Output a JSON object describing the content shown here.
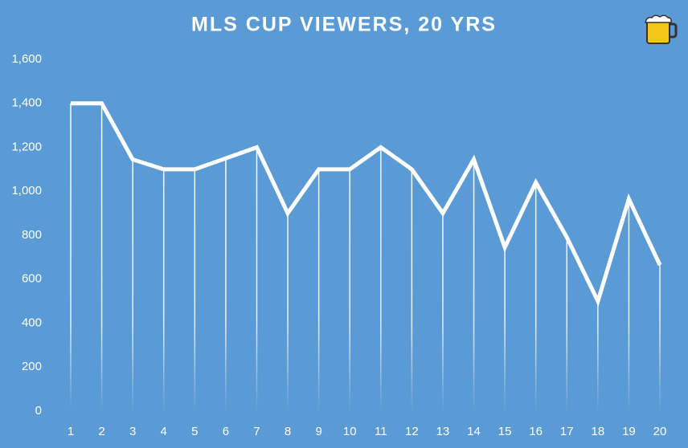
{
  "chart_data": {
    "type": "line",
    "title": "MLS CUP VIEWERS, 20 YRS",
    "categories": [
      "1",
      "2",
      "3",
      "4",
      "5",
      "6",
      "7",
      "8",
      "9",
      "10",
      "11",
      "12",
      "13",
      "14",
      "15",
      "16",
      "17",
      "18",
      "19",
      "20"
    ],
    "values": [
      1400,
      1400,
      1145,
      1100,
      1100,
      1150,
      1200,
      900,
      1100,
      1100,
      1200,
      1100,
      900,
      1145,
      745,
      1040,
      790,
      500,
      965,
      665
    ],
    "color": "#ffffff",
    "background": "#5b9bd5",
    "drop_lines": true,
    "grid": false,
    "ylim": [
      0,
      1600
    ],
    "yticks": [
      0,
      200,
      400,
      600,
      800,
      {
        "value": 1000,
        "label": "1,000"
      },
      {
        "value": 1200,
        "label": "1,200"
      },
      {
        "value": 1400,
        "label": "1,400"
      },
      {
        "value": 1600,
        "label": "1,600"
      }
    ]
  }
}
